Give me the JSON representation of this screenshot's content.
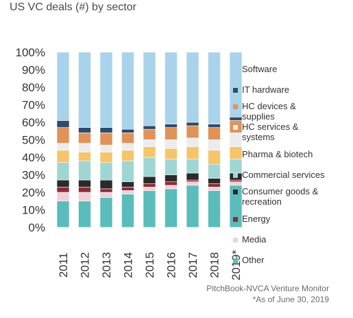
{
  "chart_data": {
    "type": "bar",
    "stacked": true,
    "title": "US VC deals (#) by sector",
    "xlabel": "",
    "ylabel": "",
    "ylim": [
      0,
      100
    ],
    "y_ticks": [
      "0%",
      "10%",
      "20%",
      "30%",
      "40%",
      "50%",
      "60%",
      "70%",
      "80%",
      "90%",
      "100%"
    ],
    "categories": [
      "2011",
      "2012",
      "2013",
      "2014",
      "2015",
      "2016",
      "2017",
      "2018",
      "2019*"
    ],
    "series": [
      {
        "name": "Other",
        "color": "#5bbcbc",
        "values": [
          15,
          15,
          17,
          19,
          21,
          22,
          24,
          21,
          24
        ]
      },
      {
        "name": "Media",
        "color": "#f2cfd8",
        "values": [
          5,
          5,
          3,
          2,
          2,
          2,
          2,
          2,
          2
        ]
      },
      {
        "name": "Energy",
        "color": "#8e2b37",
        "values": [
          3,
          3,
          2,
          2,
          2,
          2,
          1,
          2,
          1
        ]
      },
      {
        "name": "Consumer goods & recreation",
        "color": "#2a2a2a",
        "values": [
          4,
          4,
          5,
          3,
          4,
          4,
          4,
          3,
          4
        ]
      },
      {
        "name": "Commercial services",
        "color": "#9fd6d4",
        "values": [
          10,
          11,
          10,
          12,
          11,
          9,
          8,
          8,
          8
        ]
      },
      {
        "name": "Pharma & biotech",
        "color": "#f6c46a",
        "values": [
          7,
          5,
          6,
          6,
          6,
          6,
          7,
          8,
          7
        ]
      },
      {
        "name": "HC services & systems",
        "color": "#ececec",
        "values": [
          4,
          5,
          4,
          4,
          4,
          5,
          5,
          6,
          8
        ]
      },
      {
        "name": "HC devices & supplies",
        "color": "#e0925a",
        "values": [
          9,
          6,
          7,
          6,
          6,
          7,
          7,
          7,
          7
        ]
      },
      {
        "name": "IT hardware",
        "color": "#2f4b68",
        "values": [
          4,
          3,
          3,
          2,
          2,
          2,
          2,
          2,
          2
        ]
      },
      {
        "name": "Software",
        "color": "#a9d3ea",
        "values": [
          39,
          43,
          43,
          44,
          42,
          41,
          40,
          41,
          37
        ]
      }
    ],
    "legend": {
      "position": "right",
      "items": [
        {
          "label": "Software",
          "color": "#a9d3ea"
        },
        {
          "label": "IT hardware",
          "color": "#2f4b68"
        },
        {
          "label": "HC devices & supplies",
          "color": "#e0925a"
        },
        {
          "label": "HC services & systems",
          "color": "#ececec"
        },
        {
          "label": "Pharma & biotech",
          "color": "#f6c46a"
        },
        {
          "label": "Commercial services",
          "color": "#9fd6d4"
        },
        {
          "label": "Consumer goods & recreation",
          "color": "#2a2a2a"
        },
        {
          "label": "Energy",
          "color": "#8e2b37"
        },
        {
          "label": "Media",
          "color": "#f2cfd8"
        },
        {
          "label": "Other",
          "color": "#5bbcbc"
        }
      ]
    },
    "grid": false
  },
  "source": {
    "line1": "PitchBook-NVCA Venture Monitor",
    "line2": "*As of June 30, 2019"
  }
}
